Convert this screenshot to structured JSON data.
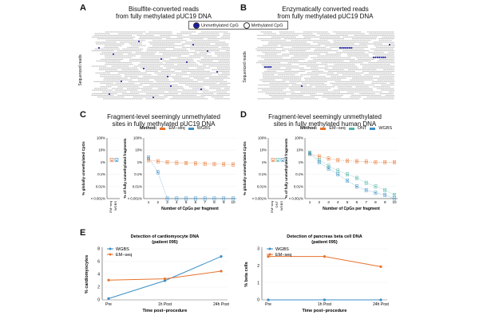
{
  "panels": {
    "A": {
      "letter": "A",
      "title_line1": "Bisulfite-converted reads",
      "title_line2": "from fully methylated pUC19 DNA",
      "ylabel": "Sequenced reads"
    },
    "B": {
      "letter": "B",
      "title_line1": "Enzymatically converted reads",
      "title_line2": "from fully methylated pUC19 DNA",
      "ylabel": "Sequenced reads"
    },
    "legend_AB": {
      "unmethylated": "Unmethylated CpG",
      "methylated": "Methylated CpG"
    },
    "C": {
      "letter": "C",
      "title_line1": "Fragment-level seemingly unmethylated",
      "title_line2": "sites in fully methylated pUC19 DNA",
      "method_label": "Method:",
      "methods": [
        "EM−seq",
        "WGBS"
      ],
      "left_ylabel": "% globally unmethylated CpGs",
      "right_ylabel": "% of fully unmethylated fragments",
      "xlabel": "Number of CpGs per fragment",
      "y_ticks": [
        "100%",
        "10%",
        "1%",
        "0.1%",
        "0.01%",
        "< 0.001%"
      ],
      "left_x_ticks": [
        "EM−seq",
        "WGBS"
      ],
      "x_ticks": [
        "1",
        "2",
        "3",
        "4",
        "5",
        "6",
        "7",
        "8",
        "9",
        "10"
      ]
    },
    "D": {
      "letter": "D",
      "title_line1": "Fragment-level seemingly unmethylated",
      "title_line2": "sites in fully methylated human DNA",
      "method_label": "Method:",
      "methods": [
        "EM−seq",
        "ONT",
        "WGBS"
      ],
      "left_ylabel": "% globally unmethylated CpGs",
      "right_ylabel": "% of fully unmethylated fragments",
      "xlabel": "Number of CpGs per fragment",
      "y_ticks": [
        "100%",
        "10%",
        "1%",
        "0.1%",
        "0.01%",
        "< 0.001%"
      ],
      "left_x_ticks": [
        "EM−seq",
        "ONT",
        "WGBS"
      ],
      "x_ticks": [
        "1",
        "2",
        "3",
        "4",
        "5",
        "6",
        "7",
        "8",
        "9",
        "10"
      ]
    },
    "E": {
      "letter": "E"
    }
  },
  "colors": {
    "em_seq": "#e8722c",
    "wgbs": "#3a8fc7",
    "ont": "#4fb3a6",
    "unmethylated": "#1a1aa8"
  },
  "chart_data": [
    {
      "id": "C-right",
      "type": "line",
      "title": "Fragment-level seemingly unmethylated sites in fully methylated pUC19 DNA",
      "xlabel": "Number of CpGs per fragment",
      "ylabel": "% of fully unmethylated fragments",
      "x": [
        1,
        2,
        3,
        4,
        5,
        6,
        7,
        8,
        9,
        10
      ],
      "yscale": "log",
      "series": [
        {
          "name": "EM−seq",
          "values": [
            1.5,
            1.2,
            1.0,
            0.9,
            0.85,
            0.8,
            0.75,
            0.7,
            0.68,
            0.65
          ]
        },
        {
          "name": "WGBS",
          "values": [
            2.5,
            0.15,
            0.001,
            0.001,
            0.001,
            0.001,
            0.001,
            0.001,
            0.001,
            0.001
          ]
        }
      ]
    },
    {
      "id": "D-right",
      "type": "line",
      "title": "Fragment-level seemingly unmethylated sites in fully methylated human DNA",
      "xlabel": "Number of CpGs per fragment",
      "ylabel": "% of fully unmethylated fragments",
      "x": [
        1,
        2,
        3,
        4,
        5,
        6,
        7,
        8,
        9,
        10
      ],
      "yscale": "log",
      "series": [
        {
          "name": "EM−seq",
          "values": [
            5,
            3,
            2,
            1.5,
            1.3,
            1.2,
            1.1,
            1.0,
            1.0,
            1.0
          ]
        },
        {
          "name": "ONT",
          "values": [
            6,
            1.5,
            0.5,
            0.2,
            0.1,
            0.05,
            0.02,
            0.01,
            0.005,
            0.002
          ]
        },
        {
          "name": "WGBS",
          "values": [
            5,
            1.0,
            0.3,
            0.1,
            0.03,
            0.01,
            0.005,
            0.003,
            0.002,
            0.001
          ]
        }
      ]
    },
    {
      "id": "E-left",
      "type": "line",
      "title": "Detection of cardiomyocyte DNA",
      "subtitle": "(patient 095)",
      "xlabel": "Time post−procedure",
      "ylabel": "% cardiomyocytes",
      "categories": [
        "Pre",
        "1h Post",
        "24h Post"
      ],
      "ylim": [
        0,
        8
      ],
      "y_ticks": [
        0,
        2,
        4,
        6,
        8
      ],
      "legend": [
        "WGBS",
        "EM−seq"
      ],
      "series": [
        {
          "name": "WGBS",
          "values": [
            0.2,
            3.0,
            6.8
          ]
        },
        {
          "name": "EM−seq",
          "values": [
            3.1,
            3.3,
            4.5
          ]
        }
      ]
    },
    {
      "id": "E-right",
      "type": "line",
      "title": "Detection of pancreas beta cell DNA",
      "subtitle": "(patient 095)",
      "xlabel": "Time post−procedure",
      "ylabel": "% beta cells",
      "categories": [
        "Pre",
        "1h Post",
        "24h Post"
      ],
      "ylim": [
        0,
        3
      ],
      "y_ticks": [
        0,
        1,
        2,
        3
      ],
      "legend": [
        "WGBS",
        "EM−seq"
      ],
      "series": [
        {
          "name": "WGBS",
          "values": [
            0,
            0,
            0
          ]
        },
        {
          "name": "EM−seq",
          "values": [
            2.55,
            2.55,
            1.95
          ]
        }
      ]
    }
  ]
}
